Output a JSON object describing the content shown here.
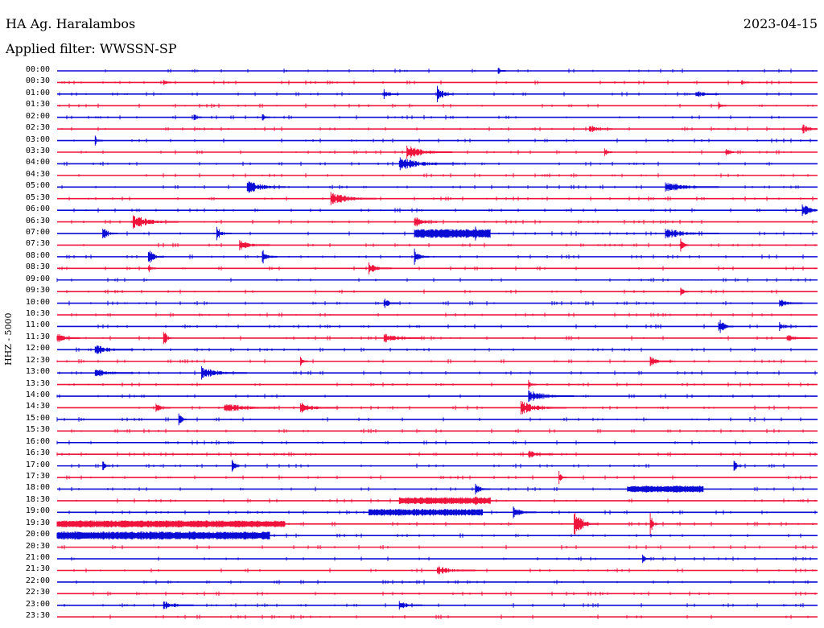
{
  "header": {
    "station": "HA Ag. Haralambos",
    "date": "2023-04-15",
    "filter": "Applied filter: WWSSN-SP"
  },
  "chart_data": {
    "type": "line",
    "title": "HA Ag. Haralambos",
    "ylabel": "HHZ - 5000",
    "colors": {
      "even": "#0b0bd6",
      "odd": "#f0143c"
    },
    "rows": [
      {
        "label": "00:00",
        "bursts": [
          [
            0.58,
            1,
            0.2
          ]
        ]
      },
      {
        "label": "00:30",
        "bursts": [
          [
            0.14,
            1,
            0.2
          ],
          [
            0.9,
            1,
            0.15
          ]
        ]
      },
      {
        "label": "01:00",
        "bursts": [
          [
            0.5,
            2,
            1.2
          ],
          [
            0.43,
            2,
            0.3
          ],
          [
            0.84,
            3,
            0.3
          ]
        ]
      },
      {
        "label": "01:30",
        "bursts": [
          [
            0.87,
            1,
            0.2
          ]
        ]
      },
      {
        "label": "02:00",
        "bursts": [
          [
            0.18,
            1,
            0.2
          ],
          [
            0.27,
            1,
            0.2
          ]
        ]
      },
      {
        "label": "02:30",
        "bursts": [
          [
            0.7,
            3,
            0.25
          ],
          [
            0.98,
            3,
            0.3
          ]
        ]
      },
      {
        "label": "03:00",
        "bursts": [
          [
            0.05,
            1,
            0.3
          ]
        ]
      },
      {
        "label": "03:30",
        "bursts": [
          [
            0.46,
            6,
            0.8
          ],
          [
            0.72,
            1,
            0.4
          ],
          [
            0.88,
            1,
            0.4
          ]
        ]
      },
      {
        "label": "04:00",
        "bursts": [
          [
            0.45,
            8,
            0.7
          ]
        ]
      },
      {
        "label": "04:30",
        "bursts": []
      },
      {
        "label": "05:00",
        "bursts": [
          [
            0.25,
            5,
            0.9
          ],
          [
            0.8,
            7,
            0.6
          ]
        ]
      },
      {
        "label": "05:30",
        "bursts": [
          [
            0.36,
            6,
            0.9
          ]
        ]
      },
      {
        "label": "06:00",
        "bursts": [
          [
            0.98,
            3,
            0.8
          ]
        ]
      },
      {
        "label": "06:30",
        "bursts": [
          [
            0.1,
            6,
            0.9
          ],
          [
            0.47,
            3,
            0.6
          ]
        ]
      },
      {
        "label": "07:00",
        "bursts": [
          [
            0.06,
            2,
            1.0
          ],
          [
            0.21,
            2,
            0.7
          ],
          [
            0.47,
            10,
            0.6
          ],
          [
            0.55,
            2,
            0.9
          ],
          [
            0.8,
            7,
            0.5
          ]
        ]
      },
      {
        "label": "07:30",
        "bursts": [
          [
            0.24,
            4,
            0.4
          ],
          [
            0.82,
            1,
            1.1
          ]
        ]
      },
      {
        "label": "08:00",
        "bursts": [
          [
            0.12,
            2,
            1.2
          ],
          [
            0.27,
            2,
            0.9
          ],
          [
            0.47,
            2,
            1.0
          ]
        ]
      },
      {
        "label": "08:30",
        "bursts": [
          [
            0.12,
            1,
            0.4
          ],
          [
            0.41,
            3,
            0.5
          ]
        ]
      },
      {
        "label": "09:00",
        "bursts": []
      },
      {
        "label": "09:30",
        "bursts": [
          [
            0.82,
            1,
            0.5
          ]
        ]
      },
      {
        "label": "10:00",
        "bursts": [
          [
            0.43,
            2,
            0.5
          ],
          [
            0.95,
            3,
            0.3
          ]
        ]
      },
      {
        "label": "10:30",
        "bursts": []
      },
      {
        "label": "11:00",
        "bursts": [
          [
            0.87,
            2,
            1.2
          ],
          [
            0.95,
            2,
            0.3
          ]
        ]
      },
      {
        "label": "11:30",
        "bursts": [
          [
            0.0,
            3,
            0.4
          ],
          [
            0.14,
            1,
            1.8
          ],
          [
            0.43,
            5,
            0.3
          ],
          [
            0.96,
            3,
            0.3
          ]
        ]
      },
      {
        "label": "12:00",
        "bursts": [
          [
            0.05,
            5,
            0.4
          ]
        ]
      },
      {
        "label": "12:30",
        "bursts": [
          [
            0.32,
            1,
            0.3
          ],
          [
            0.78,
            3,
            0.3
          ]
        ]
      },
      {
        "label": "13:00",
        "bursts": [
          [
            0.05,
            5,
            0.4
          ],
          [
            0.19,
            6,
            0.7
          ]
        ]
      },
      {
        "label": "13:30",
        "bursts": [
          [
            0.62,
            1,
            0.3
          ]
        ]
      },
      {
        "label": "14:00",
        "bursts": [
          [
            0.62,
            6,
            0.7
          ]
        ]
      },
      {
        "label": "14:30",
        "bursts": [
          [
            0.13,
            2,
            0.4
          ],
          [
            0.22,
            7,
            0.5
          ],
          [
            0.32,
            5,
            0.4
          ],
          [
            0.61,
            6,
            0.7
          ]
        ]
      },
      {
        "label": "15:00",
        "bursts": [
          [
            0.16,
            1,
            1.3
          ]
        ]
      },
      {
        "label": "15:30",
        "bursts": []
      },
      {
        "label": "16:00",
        "bursts": []
      },
      {
        "label": "16:30",
        "bursts": [
          [
            0.62,
            3,
            0.3
          ]
        ]
      },
      {
        "label": "17:00",
        "bursts": [
          [
            0.06,
            1,
            0.5
          ],
          [
            0.23,
            1,
            1.3
          ],
          [
            0.89,
            1,
            0.9
          ]
        ]
      },
      {
        "label": "17:30",
        "bursts": [
          [
            0.66,
            1,
            0.6
          ]
        ]
      },
      {
        "label": "18:00",
        "bursts": [
          [
            0.55,
            2,
            0.5
          ],
          [
            0.75,
            10,
            0.3
          ]
        ]
      },
      {
        "label": "18:30",
        "bursts": [
          [
            0.55,
            1,
            1.4
          ],
          [
            0.45,
            12,
            0.3
          ]
        ]
      },
      {
        "label": "19:00",
        "bursts": [
          [
            0.6,
            3,
            0.7
          ],
          [
            0.41,
            15,
            0.3
          ]
        ]
      },
      {
        "label": "19:30",
        "bursts": [
          [
            0.68,
            3,
            2.2
          ],
          [
            0.78,
            1,
            1.8
          ],
          [
            0.0,
            30,
            0.35
          ]
        ]
      },
      {
        "label": "20:00",
        "bursts": [
          [
            0.0,
            28,
            0.5
          ]
        ]
      },
      {
        "label": "20:30",
        "bursts": []
      },
      {
        "label": "21:00",
        "bursts": [
          [
            0.77,
            1,
            0.3
          ]
        ]
      },
      {
        "label": "21:30",
        "bursts": [
          [
            0.5,
            5,
            0.3
          ]
        ]
      },
      {
        "label": "22:00",
        "bursts": []
      },
      {
        "label": "22:30",
        "bursts": []
      },
      {
        "label": "23:00",
        "bursts": [
          [
            0.14,
            4,
            0.3
          ],
          [
            0.45,
            3,
            0.3
          ]
        ]
      },
      {
        "label": "23:30",
        "bursts": []
      }
    ]
  }
}
